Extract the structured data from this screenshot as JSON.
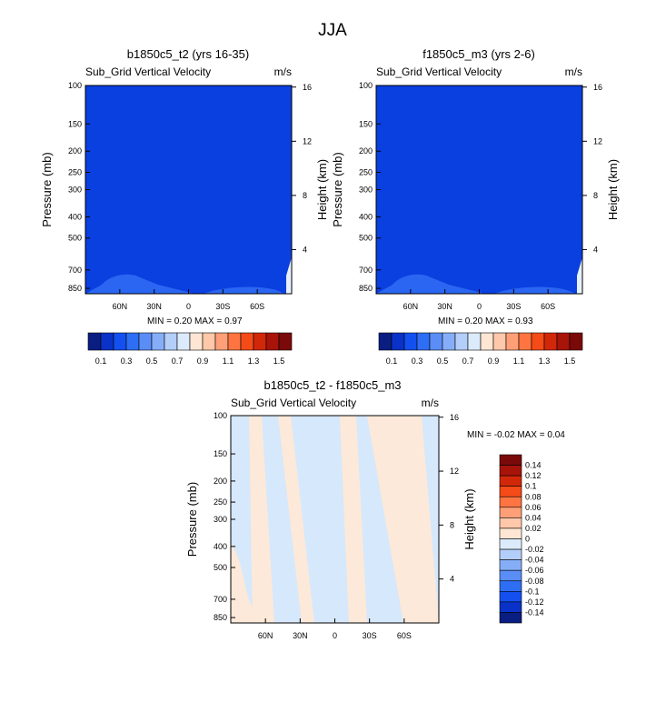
{
  "page_title": "JJA",
  "chart_data": [
    {
      "type": "heatmap",
      "title": "b1850c5_t2 (yrs 16-35)",
      "variable": "Sub_Grid Vertical Velocity",
      "units": "m/s",
      "ylabel": "Pressure (mb)",
      "ylabel_right": "Height (km)",
      "y_ticks": [
        100,
        150,
        200,
        250,
        300,
        400,
        500,
        700,
        850
      ],
      "y_right_ticks": [
        16,
        12,
        8,
        4
      ],
      "x_ticks": [
        "60N",
        "30N",
        "0",
        "30S",
        "60S"
      ],
      "x_tick_values": [
        60,
        30,
        0,
        -30,
        -60
      ],
      "xlim": [
        90,
        -90
      ],
      "ylim": [
        1000,
        100
      ],
      "min_label": "MIN =",
      "min": "0.20",
      "max_label": "MAX =",
      "max": "0.97",
      "background_value": 0.2,
      "colorbar_labels": [
        "0.1",
        "0.3",
        "0.5",
        "0.7",
        "0.9",
        "1.1",
        "1.3",
        "1.5"
      ]
    },
    {
      "type": "heatmap",
      "title": "f1850c5_m3 (yrs 2-6)",
      "variable": "Sub_Grid Vertical Velocity",
      "units": "m/s",
      "ylabel": "Pressure (mb)",
      "ylabel_right": "Height (km)",
      "y_ticks": [
        100,
        150,
        200,
        250,
        300,
        400,
        500,
        700,
        850
      ],
      "y_right_ticks": [
        16,
        12,
        8,
        4
      ],
      "x_ticks": [
        "60N",
        "30N",
        "0",
        "30S",
        "60S"
      ],
      "x_tick_values": [
        60,
        30,
        0,
        -30,
        -60
      ],
      "xlim": [
        90,
        -90
      ],
      "ylim": [
        1000,
        100
      ],
      "min_label": "MIN =",
      "min": "0.20",
      "max_label": "MAX =",
      "max": "0.93",
      "background_value": 0.2,
      "colorbar_labels": [
        "0.1",
        "0.3",
        "0.5",
        "0.7",
        "0.9",
        "1.1",
        "1.3",
        "1.5"
      ]
    },
    {
      "type": "heatmap",
      "title": "b1850c5_t2 - f1850c5_m3",
      "variable": "Sub_Grid Vertical Velocity",
      "units": "m/s",
      "ylabel": "Pressure (mb)",
      "ylabel_right": "Height (km)",
      "y_ticks": [
        100,
        150,
        200,
        250,
        300,
        400,
        500,
        700,
        850
      ],
      "y_right_ticks": [
        16,
        12,
        8,
        4
      ],
      "x_ticks": [
        "60N",
        "30N",
        "0",
        "30S",
        "60S"
      ],
      "x_tick_values": [
        60,
        30,
        0,
        -30,
        -60
      ],
      "xlim": [
        90,
        -90
      ],
      "ylim": [
        1000,
        100
      ],
      "min_label": "MIN =",
      "min": "-0.02",
      "max_label": "MAX =",
      "max": "0.04",
      "colorbar_labels": [
        "0.14",
        "0.12",
        "0.1",
        "0.08",
        "0.06",
        "0.04",
        "0.02",
        "0",
        "-0.02",
        "-0.04",
        "-0.06",
        "-0.08",
        "-0.1",
        "-0.12",
        "-0.14"
      ]
    }
  ],
  "colors": {
    "abs_background": "#0a3fe0",
    "abs_patch": "#2a66f2",
    "abs_scale": [
      "#0a1e82",
      "#0a32c8",
      "#1450f0",
      "#2e6ef4",
      "#5a8ef6",
      "#86aef8",
      "#b4cefa",
      "#dcebfb",
      "#ffe6d4",
      "#ffc8aa",
      "#ff9f78",
      "#ff7440",
      "#f54b18",
      "#d2280a",
      "#a8140a",
      "#7a0a0a"
    ],
    "diff_pos": "#fde9d9",
    "diff_neg": "#d6e8fb",
    "diff_scale": [
      "#7a0a0a",
      "#a8140a",
      "#d2280a",
      "#f54b18",
      "#ff7440",
      "#ff9f78",
      "#ffc8aa",
      "#ffe6d4",
      "#dcebfb",
      "#b4cefa",
      "#86aef8",
      "#5a8ef6",
      "#2e6ef4",
      "#1450f0",
      "#0a32c8",
      "#0a1e82"
    ]
  }
}
